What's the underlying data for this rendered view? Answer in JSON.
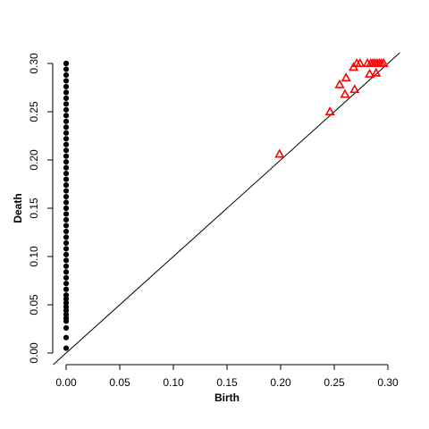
{
  "chart_data": {
    "type": "scatter",
    "title": "",
    "xlabel": "Birth",
    "ylabel": "Death",
    "xlim": [
      0,
      0.3
    ],
    "ylim": [
      0,
      0.3
    ],
    "grid": false,
    "legend": "none",
    "x_ticks": [
      "0.00",
      "0.05",
      "0.10",
      "0.15",
      "0.20",
      "0.25",
      "0.30"
    ],
    "y_ticks": [
      "0.00",
      "0.05",
      "0.10",
      "0.15",
      "0.20",
      "0.25",
      "0.30"
    ],
    "diagonal_line": true,
    "series": [
      {
        "marker": "filled-circle",
        "color": "#000000",
        "points": [
          [
            0,
            0.005
          ],
          [
            0,
            0.016
          ],
          [
            0,
            0.026
          ],
          [
            0,
            0.033
          ],
          [
            0,
            0.036
          ],
          [
            0,
            0.04
          ],
          [
            0,
            0.044
          ],
          [
            0,
            0.048
          ],
          [
            0,
            0.052
          ],
          [
            0,
            0.056
          ],
          [
            0,
            0.06
          ],
          [
            0,
            0.066
          ],
          [
            0,
            0.072
          ],
          [
            0,
            0.078
          ],
          [
            0,
            0.084
          ],
          [
            0,
            0.09
          ],
          [
            0,
            0.096
          ],
          [
            0,
            0.102
          ],
          [
            0,
            0.108
          ],
          [
            0,
            0.114
          ],
          [
            0,
            0.12
          ],
          [
            0,
            0.126
          ],
          [
            0,
            0.132
          ],
          [
            0,
            0.138
          ],
          [
            0,
            0.144
          ],
          [
            0,
            0.15
          ],
          [
            0,
            0.156
          ],
          [
            0,
            0.162
          ],
          [
            0,
            0.168
          ],
          [
            0,
            0.174
          ],
          [
            0,
            0.18
          ],
          [
            0,
            0.186
          ],
          [
            0,
            0.192
          ],
          [
            0,
            0.198
          ],
          [
            0,
            0.204
          ],
          [
            0,
            0.21
          ],
          [
            0,
            0.216
          ],
          [
            0,
            0.222
          ],
          [
            0,
            0.228
          ],
          [
            0,
            0.234
          ],
          [
            0,
            0.24
          ],
          [
            0,
            0.246
          ],
          [
            0,
            0.252
          ],
          [
            0,
            0.258
          ],
          [
            0,
            0.264
          ],
          [
            0,
            0.27
          ],
          [
            0,
            0.276
          ],
          [
            0,
            0.282
          ],
          [
            0,
            0.288
          ],
          [
            0,
            0.294
          ],
          [
            0,
            0.3
          ]
        ]
      },
      {
        "marker": "open-triangle",
        "color": "#ff0000",
        "points": [
          [
            0.199,
            0.206
          ],
          [
            0.246,
            0.25
          ],
          [
            0.255,
            0.278
          ],
          [
            0.26,
            0.268
          ],
          [
            0.261,
            0.285
          ],
          [
            0.268,
            0.296
          ],
          [
            0.269,
            0.273
          ],
          [
            0.271,
            0.3
          ],
          [
            0.274,
            0.3
          ],
          [
            0.281,
            0.3
          ],
          [
            0.283,
            0.289
          ],
          [
            0.284,
            0.3
          ],
          [
            0.286,
            0.3
          ],
          [
            0.288,
            0.3
          ],
          [
            0.289,
            0.29
          ],
          [
            0.29,
            0.3
          ],
          [
            0.292,
            0.3
          ],
          [
            0.294,
            0.3
          ],
          [
            0.296,
            0.3
          ]
        ]
      }
    ]
  }
}
